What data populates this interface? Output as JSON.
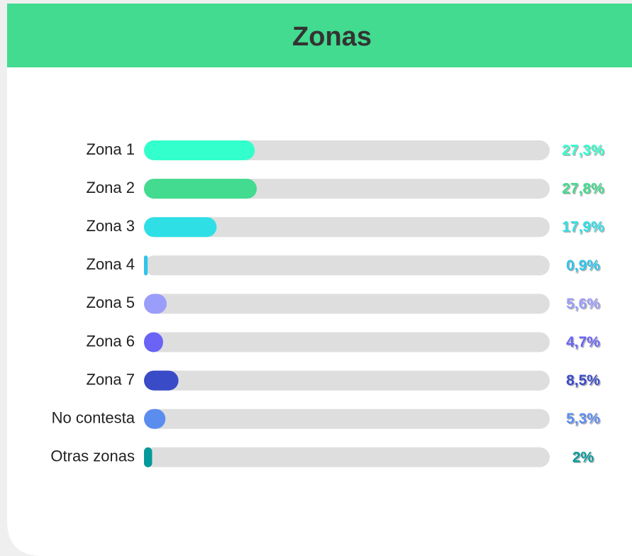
{
  "chart_data": {
    "type": "bar",
    "orientation": "horizontal",
    "title": "Zonas",
    "categories": [
      "Zona 1",
      "Zona 2",
      "Zona 3",
      "Zona 4",
      "Zona 5",
      "Zona 6",
      "Zona 7",
      "No contesta",
      "Otras zonas"
    ],
    "values": [
      27.3,
      27.8,
      17.9,
      0.9,
      5.6,
      4.7,
      8.5,
      5.3,
      2
    ],
    "value_labels": [
      "27,3%",
      "27,8%",
      "17,9%",
      "0,9%",
      "5,6%",
      "4,7%",
      "8,5%",
      "5,3%",
      "2%"
    ],
    "colors": [
      "#33ffcc",
      "#42db8f",
      "#2fdfe6",
      "#2ec4ea",
      "#9b9dfb",
      "#6a63f5",
      "#3a4bc8",
      "#5b8def",
      "#05999a"
    ],
    "xlim": [
      0,
      100
    ]
  }
}
